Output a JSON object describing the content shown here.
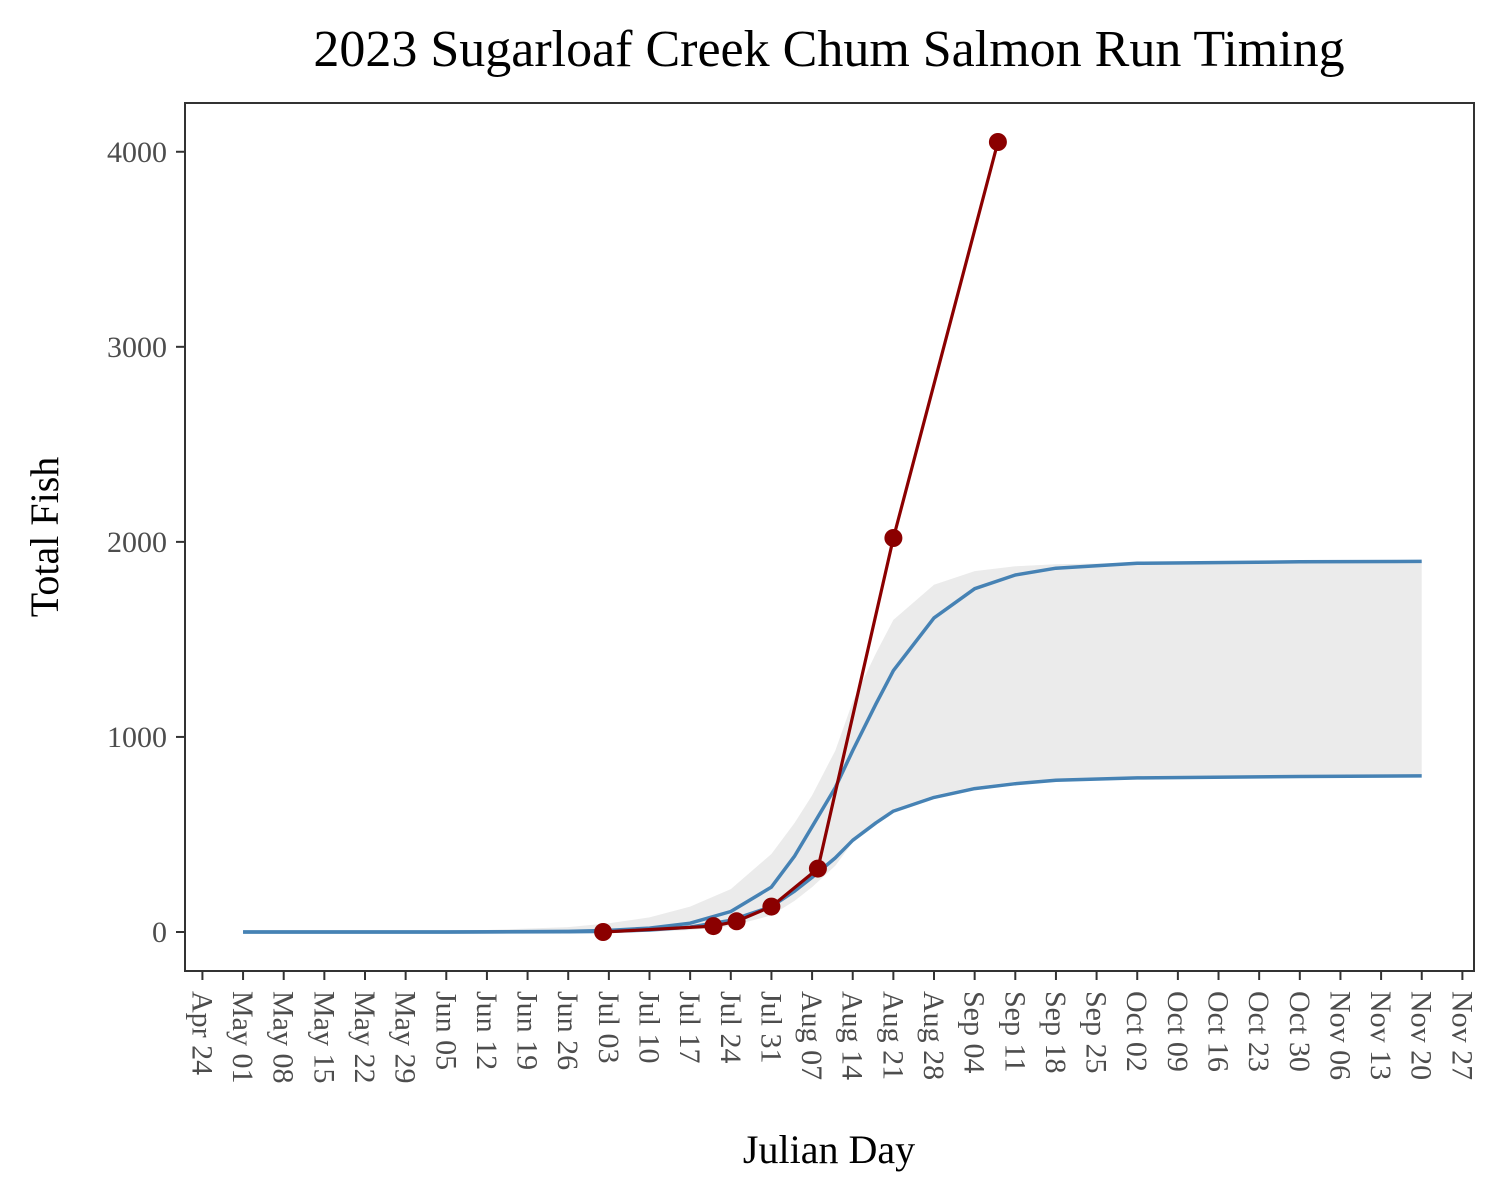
{
  "chart_data": {
    "type": "line",
    "title": "2023 Sugarloaf Creek Chum Salmon Run Timing",
    "xlabel": "Julian Day",
    "ylabel": "Total Fish",
    "ylim": [
      -200,
      4250
    ],
    "xlim": [
      "2023-04-21",
      "2023-11-29"
    ],
    "y_ticks": [
      "0",
      "1000",
      "2000",
      "3000",
      "4000"
    ],
    "x_ticks": [
      "Apr 24",
      "May 01",
      "May 08",
      "May 15",
      "May 22",
      "May 29",
      "Jun 05",
      "Jun 12",
      "Jun 19",
      "Jun 26",
      "Jul 03",
      "Jul 10",
      "Jul 17",
      "Jul 24",
      "Jul 31",
      "Aug 07",
      "Aug 14",
      "Aug 21",
      "Aug 28",
      "Sep 04",
      "Sep 11",
      "Sep 18",
      "Sep 25",
      "Oct 02",
      "Oct 09",
      "Oct 16",
      "Oct 23",
      "Oct 30",
      "Nov 06",
      "Nov 13",
      "Nov 20",
      "Nov 27"
    ],
    "x_tick_dates": [
      "2023-04-24",
      "2023-05-01",
      "2023-05-08",
      "2023-05-15",
      "2023-05-22",
      "2023-05-29",
      "2023-06-05",
      "2023-06-12",
      "2023-06-19",
      "2023-06-26",
      "2023-07-03",
      "2023-07-10",
      "2023-07-17",
      "2023-07-24",
      "2023-07-31",
      "2023-08-07",
      "2023-08-14",
      "2023-08-21",
      "2023-08-28",
      "2023-09-04",
      "2023-09-11",
      "2023-09-18",
      "2023-09-25",
      "2023-10-02",
      "2023-10-09",
      "2023-10-16",
      "2023-10-23",
      "2023-10-30",
      "2023-11-06",
      "2023-11-13",
      "2023-11-20",
      "2023-11-27"
    ],
    "grid": false,
    "band": {
      "color": "#ebebeb",
      "x": [
        "2023-05-01",
        "2023-06-05",
        "2023-06-26",
        "2023-07-03",
        "2023-07-10",
        "2023-07-17",
        "2023-07-24",
        "2023-07-31",
        "2023-08-04",
        "2023-08-07",
        "2023-08-11",
        "2023-08-14",
        "2023-08-18",
        "2023-08-21",
        "2023-08-28",
        "2023-09-04",
        "2023-09-11",
        "2023-09-18",
        "2023-10-02",
        "2023-10-30",
        "2023-11-20"
      ],
      "lower": [
        0,
        0,
        0,
        0,
        0,
        10,
        30,
        85,
        160,
        230,
        340,
        460,
        560,
        630,
        700,
        745,
        770,
        782,
        790,
        795,
        800
      ],
      "upper": [
        0,
        3,
        25,
        45,
        75,
        130,
        220,
        400,
        560,
        700,
        930,
        1180,
        1430,
        1600,
        1780,
        1850,
        1875,
        1885,
        1893,
        1897,
        1900
      ]
    },
    "series": [
      {
        "color": "#4682b4",
        "x": [
          "2023-05-01",
          "2023-06-05",
          "2023-06-26",
          "2023-07-03",
          "2023-07-10",
          "2023-07-17",
          "2023-07-24",
          "2023-07-31",
          "2023-08-04",
          "2023-08-07",
          "2023-08-11",
          "2023-08-14",
          "2023-08-18",
          "2023-08-21",
          "2023-08-28",
          "2023-09-04",
          "2023-09-11",
          "2023-09-18",
          "2023-10-02",
          "2023-10-30",
          "2023-11-20"
        ],
        "values": [
          0,
          0,
          3,
          8,
          20,
          45,
          105,
          230,
          390,
          540,
          740,
          930,
          1170,
          1340,
          1610,
          1760,
          1830,
          1865,
          1890,
          1898,
          1900
        ]
      },
      {
        "color": "#4682b4",
        "x": [
          "2023-05-01",
          "2023-06-05",
          "2023-06-26",
          "2023-07-03",
          "2023-07-10",
          "2023-07-17",
          "2023-07-24",
          "2023-07-31",
          "2023-08-04",
          "2023-08-07",
          "2023-08-11",
          "2023-08-14",
          "2023-08-18",
          "2023-08-21",
          "2023-08-28",
          "2023-09-04",
          "2023-09-11",
          "2023-09-18",
          "2023-10-02",
          "2023-10-30",
          "2023-11-20"
        ],
        "values": [
          0,
          0,
          1,
          3,
          10,
          25,
          60,
          130,
          210,
          280,
          380,
          470,
          560,
          620,
          690,
          735,
          760,
          778,
          790,
          797,
          800
        ]
      },
      {
        "color": "#8b0000",
        "markers": true,
        "x": [
          "2023-07-02",
          "2023-07-21",
          "2023-07-25",
          "2023-07-31",
          "2023-08-08",
          "2023-08-21",
          "2023-09-08"
        ],
        "values": [
          0,
          30,
          55,
          130,
          325,
          2020,
          4050
        ]
      }
    ]
  }
}
